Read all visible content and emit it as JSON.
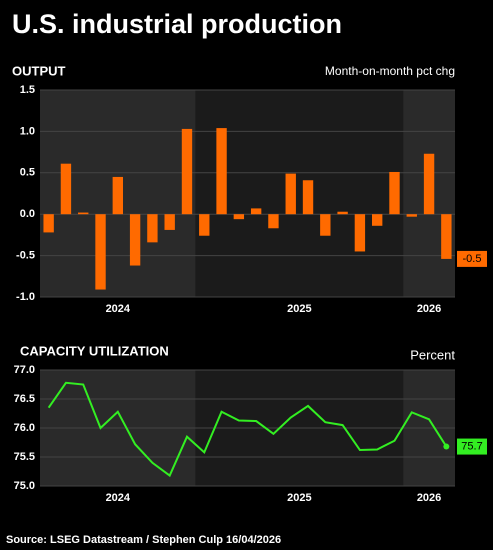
{
  "title": "U.S. industrial production",
  "source": "Source: LSEG Datastream / Stephen Culp 16/04/2026",
  "chart_data": [
    {
      "type": "bar",
      "title": "OUTPUT",
      "subtitle": "Month-on-month pct chg",
      "categories": [
        null,
        null,
        null,
        null,
        null,
        null,
        null,
        null,
        null,
        null,
        null,
        null,
        null,
        null,
        null,
        null,
        null,
        null,
        null,
        null,
        null,
        null,
        null,
        null
      ],
      "values": [
        -0.22,
        0.61,
        0.02,
        -0.91,
        0.45,
        -0.62,
        -0.34,
        -0.19,
        1.03,
        -0.26,
        1.04,
        -0.06,
        0.07,
        -0.17,
        0.49,
        0.41,
        -0.26,
        0.03,
        -0.45,
        -0.14,
        0.51,
        -0.03,
        0.73,
        -0.54
      ],
      "last_value_label": "-0.5",
      "color": "#ff6a00",
      "ylim": [
        -1,
        1.5
      ],
      "yticks": [
        {
          "value": -1,
          "label": "-1.0"
        },
        -0.5,
        {
          "value": 0,
          "label": "0.0"
        },
        0.5,
        {
          "value": 1,
          "label": "1.0"
        },
        1.5
      ],
      "xticks": [
        "2024",
        "2025",
        "2026"
      ]
    },
    {
      "type": "line",
      "title": "CAPACITY UTILIZATION",
      "subtitle": "Percent",
      "categories": [
        null,
        null,
        null,
        null,
        null,
        null,
        null,
        null,
        null,
        null,
        null,
        null,
        null,
        null,
        null,
        null,
        null,
        null,
        null,
        null,
        null,
        null,
        null,
        null
      ],
      "values": [
        76.35,
        76.78,
        76.75,
        76.0,
        76.28,
        75.72,
        75.4,
        75.18,
        75.85,
        75.58,
        76.28,
        76.13,
        76.12,
        75.9,
        76.18,
        76.38,
        76.1,
        76.05,
        75.62,
        75.63,
        75.78,
        76.27,
        76.15,
        75.68
      ],
      "last_value_label": "75.7",
      "color": "#33ee22",
      "ylim": [
        75,
        77
      ],
      "yticks": [
        {
          "value": 75,
          "label": "75.0"
        },
        75.5,
        {
          "value": 76,
          "label": "76.0"
        },
        76.5,
        {
          "value": 77,
          "label": "77.0"
        }
      ],
      "xticks": [
        "2024",
        "2025",
        "2026"
      ]
    }
  ]
}
